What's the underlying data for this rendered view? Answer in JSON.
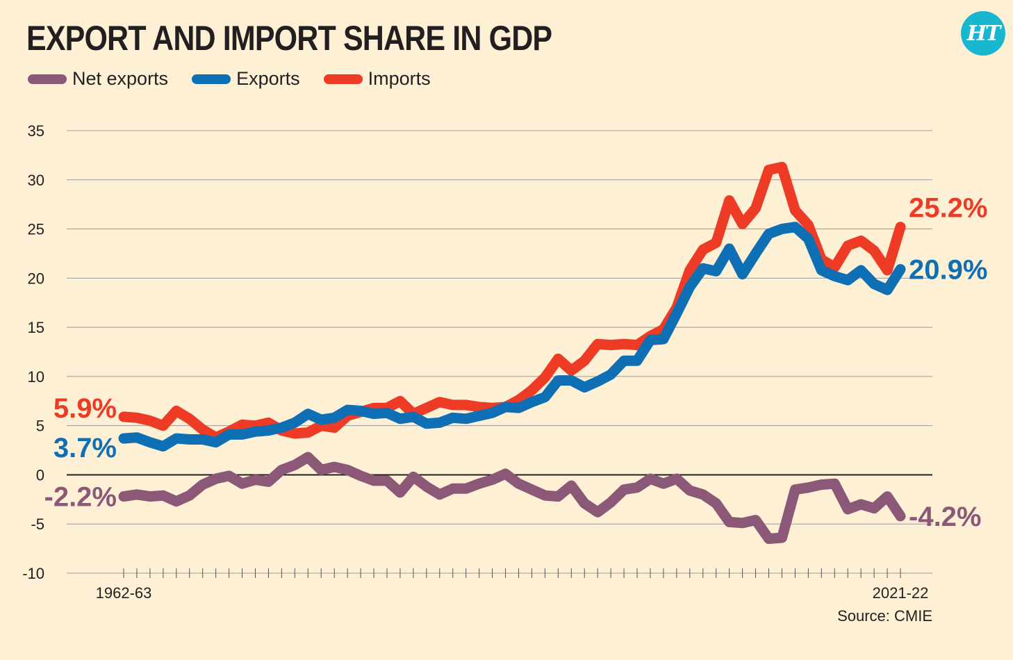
{
  "title": "EXPORT AND IMPORT SHARE IN GDP",
  "logo_text": "HT",
  "source": "Source: CMIE",
  "colors": {
    "background": "#fdf0d5",
    "net_exports": "#8c5878",
    "exports": "#0f6fb5",
    "imports": "#ee3b25",
    "logo": "#19b6cf"
  },
  "chart_data": {
    "type": "line",
    "title": "EXPORT AND IMPORT SHARE IN GDP",
    "xlabel": "",
    "ylabel": "",
    "ylim": [
      -10,
      35
    ],
    "yticks": [
      35,
      30,
      25,
      20,
      15,
      10,
      5,
      0,
      -5,
      -10
    ],
    "x_tick_labels": [
      "1962-63",
      "2021-22"
    ],
    "x": [
      "1962-63",
      "1963-64",
      "1964-65",
      "1965-66",
      "1966-67",
      "1967-68",
      "1968-69",
      "1969-70",
      "1970-71",
      "1971-72",
      "1972-73",
      "1973-74",
      "1974-75",
      "1975-76",
      "1976-77",
      "1977-78",
      "1978-79",
      "1979-80",
      "1980-81",
      "1981-82",
      "1982-83",
      "1983-84",
      "1984-85",
      "1985-86",
      "1986-87",
      "1987-88",
      "1988-89",
      "1989-90",
      "1990-91",
      "1991-92",
      "1992-93",
      "1993-94",
      "1994-95",
      "1995-96",
      "1996-97",
      "1997-98",
      "1998-99",
      "1999-00",
      "2000-01",
      "2001-02",
      "2002-03",
      "2003-04",
      "2004-05",
      "2005-06",
      "2006-07",
      "2007-08",
      "2008-09",
      "2009-10",
      "2010-11",
      "2011-12",
      "2012-13",
      "2013-14",
      "2014-15",
      "2015-16",
      "2016-17",
      "2017-18",
      "2018-19",
      "2019-20",
      "2020-21",
      "2021-22"
    ],
    "series": [
      {
        "name": "Net exports",
        "end_labels": [
          "-2.2%",
          "-4.2%"
        ],
        "values": [
          -2.2,
          -2.0,
          -2.2,
          -2.1,
          -2.7,
          -2.1,
          -1.0,
          -0.4,
          -0.1,
          -0.9,
          -0.5,
          -0.7,
          0.5,
          1.0,
          1.8,
          0.5,
          0.8,
          0.5,
          -0.1,
          -0.6,
          -0.6,
          -1.8,
          -0.2,
          -1.2,
          -2.0,
          -1.4,
          -1.4,
          -0.9,
          -0.5,
          0.1,
          -0.9,
          -1.5,
          -2.1,
          -2.2,
          -1.1,
          -2.9,
          -3.8,
          -2.8,
          -1.5,
          -1.3,
          -0.4,
          -0.9,
          -0.4,
          -1.6,
          -2.0,
          -2.9,
          -4.8,
          -4.9,
          -4.6,
          -6.5,
          -6.4,
          -1.5,
          -1.3,
          -1.0,
          -0.9,
          -3.5,
          -3.0,
          -3.4,
          -2.2,
          -4.2
        ]
      },
      {
        "name": "Exports",
        "end_labels": [
          "3.7%",
          "20.9%"
        ],
        "values": [
          3.7,
          3.8,
          3.3,
          2.9,
          3.7,
          3.6,
          3.6,
          3.3,
          4.1,
          4.1,
          4.4,
          4.5,
          4.8,
          5.3,
          6.2,
          5.6,
          5.8,
          6.6,
          6.5,
          6.2,
          6.3,
          5.7,
          5.9,
          5.2,
          5.3,
          5.8,
          5.7,
          6.0,
          6.3,
          6.9,
          6.8,
          7.4,
          7.9,
          9.6,
          9.6,
          8.9,
          9.5,
          10.2,
          11.6,
          11.6,
          13.7,
          13.8,
          16.4,
          19.1,
          21.0,
          20.7,
          23.0,
          20.4,
          22.5,
          24.5,
          25.0,
          25.2,
          24.0,
          20.8,
          20.2,
          19.8,
          20.8,
          19.4,
          18.8,
          20.9
        ]
      },
      {
        "name": "Imports",
        "end_labels": [
          "5.9%",
          "25.2%"
        ],
        "values": [
          5.9,
          5.8,
          5.5,
          5.0,
          6.5,
          5.7,
          4.6,
          3.8,
          4.4,
          5.1,
          5.0,
          5.3,
          4.5,
          4.2,
          4.3,
          5.0,
          4.8,
          6.0,
          6.4,
          6.8,
          6.8,
          7.5,
          6.2,
          6.8,
          7.4,
          7.1,
          7.1,
          6.9,
          6.8,
          6.9,
          7.6,
          8.6,
          9.9,
          11.8,
          10.6,
          11.6,
          13.3,
          13.2,
          13.3,
          13.2,
          14.1,
          14.8,
          17.0,
          20.8,
          22.9,
          23.6,
          27.9,
          25.5,
          27.1,
          31.0,
          31.3,
          26.9,
          25.4,
          21.9,
          21.1,
          23.3,
          23.8,
          22.8,
          20.8,
          25.2
        ]
      }
    ],
    "grid": true,
    "legend": "top-left"
  }
}
